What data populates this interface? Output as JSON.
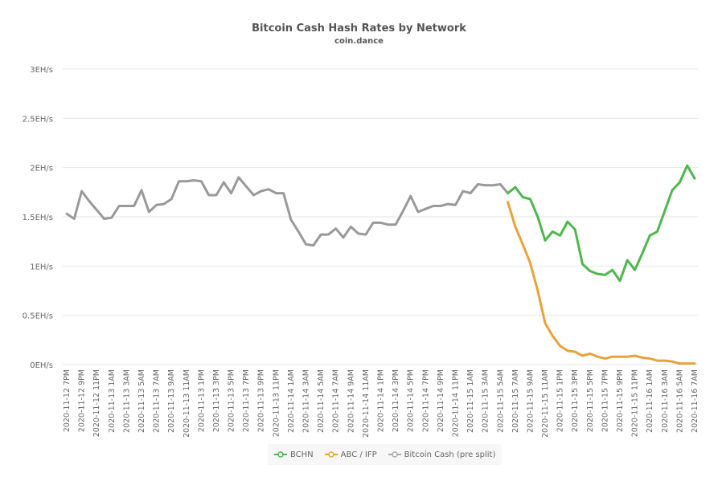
{
  "chart_data": {
    "type": "line",
    "title": "Bitcoin Cash Hash Rates by Network",
    "subtitle": "coin.dance",
    "xlabel": "",
    "ylabel": "",
    "ylim": [
      0,
      3
    ],
    "y_ticks": [
      "0EH/s",
      "0.5EH/s",
      "1EH/s",
      "1.5EH/s",
      "2EH/s",
      "2.5EH/s",
      "3EH/s"
    ],
    "y_tick_values": [
      0,
      0.5,
      1,
      1.5,
      2,
      2.5,
      3
    ],
    "grid": true,
    "legend_position": "bottom",
    "x_tick_labels": [
      "2020-11-12 7PM",
      "2020-11-12 9PM",
      "2020-11-12 11PM",
      "2020-11-13 1AM",
      "2020-11-13 3AM",
      "2020-11-13 5AM",
      "2020-11-13 7AM",
      "2020-11-13 9AM",
      "2020-11-13 11AM",
      "2020-11-13 1PM",
      "2020-11-13 3PM",
      "2020-11-13 5PM",
      "2020-11-13 7PM",
      "2020-11-13 9PM",
      "2020-11-13 11PM",
      "2020-11-14 1AM",
      "2020-11-14 3AM",
      "2020-11-14 5AM",
      "2020-11-14 7AM",
      "2020-11-14 9AM",
      "2020-11-14 11AM",
      "2020-11-14 1PM",
      "2020-11-14 3PM",
      "2020-11-14 5PM",
      "2020-11-14 7PM",
      "2020-11-14 9PM",
      "2020-11-14 11PM",
      "2020-11-15 1AM",
      "2020-11-15 3AM",
      "2020-11-15 5AM",
      "2020-11-15 7AM",
      "2020-11-15 9AM",
      "2020-11-15 11AM",
      "2020-11-15 1PM",
      "2020-11-15 3PM",
      "2020-11-15 5PM",
      "2020-11-15 7PM",
      "2020-11-15 9PM",
      "2020-11-15 11PM",
      "2020-11-16 1AM",
      "2020-11-16 3AM",
      "2020-11-16 5AM",
      "2020-11-16 7AM"
    ],
    "x_hours_total": 84,
    "series": [
      {
        "name": "Bitcoin Cash (pre split)",
        "color": "#999999",
        "start_hour": 0,
        "values": [
          1.53,
          1.48,
          1.76,
          1.66,
          1.57,
          1.48,
          1.49,
          1.61,
          1.61,
          1.61,
          1.77,
          1.55,
          1.62,
          1.63,
          1.68,
          1.86,
          1.86,
          1.87,
          1.86,
          1.72,
          1.72,
          1.85,
          1.74,
          1.9,
          1.81,
          1.72,
          1.76,
          1.78,
          1.74,
          1.74,
          1.47,
          1.35,
          1.22,
          1.21,
          1.32,
          1.32,
          1.38,
          1.29,
          1.4,
          1.33,
          1.32,
          1.44,
          1.44,
          1.42,
          1.42,
          1.56,
          1.71,
          1.55,
          1.58,
          1.61,
          1.61,
          1.63,
          1.62,
          1.76,
          1.74,
          1.83,
          1.82,
          1.82,
          1.83,
          1.74
        ]
      },
      {
        "name": "BCHN",
        "color": "#4cb84c",
        "start_hour": 59,
        "values": [
          1.74,
          1.8,
          1.7,
          1.68,
          1.5,
          1.26,
          1.35,
          1.31,
          1.45,
          1.37,
          1.02,
          0.95,
          0.92,
          0.91,
          0.96,
          0.85,
          1.06,
          0.96,
          1.13,
          1.31,
          1.35,
          1.56,
          1.77,
          1.85,
          2.02,
          1.89
        ]
      },
      {
        "name": "ABC / IFP",
        "color": "#e8a23a",
        "start_hour": 59,
        "values": [
          1.65,
          1.4,
          1.22,
          1.03,
          0.75,
          0.42,
          0.29,
          0.19,
          0.14,
          0.13,
          0.09,
          0.11,
          0.08,
          0.06,
          0.08,
          0.08,
          0.08,
          0.09,
          0.07,
          0.06,
          0.04,
          0.04,
          0.03,
          0.01,
          0.01,
          0.01
        ]
      }
    ]
  },
  "legend": {
    "items": [
      {
        "label": "BCHN",
        "color": "#4cb84c"
      },
      {
        "label": "ABC / IFP",
        "color": "#e8a23a"
      },
      {
        "label": "Bitcoin Cash (pre split)",
        "color": "#aaaaaa"
      }
    ]
  }
}
